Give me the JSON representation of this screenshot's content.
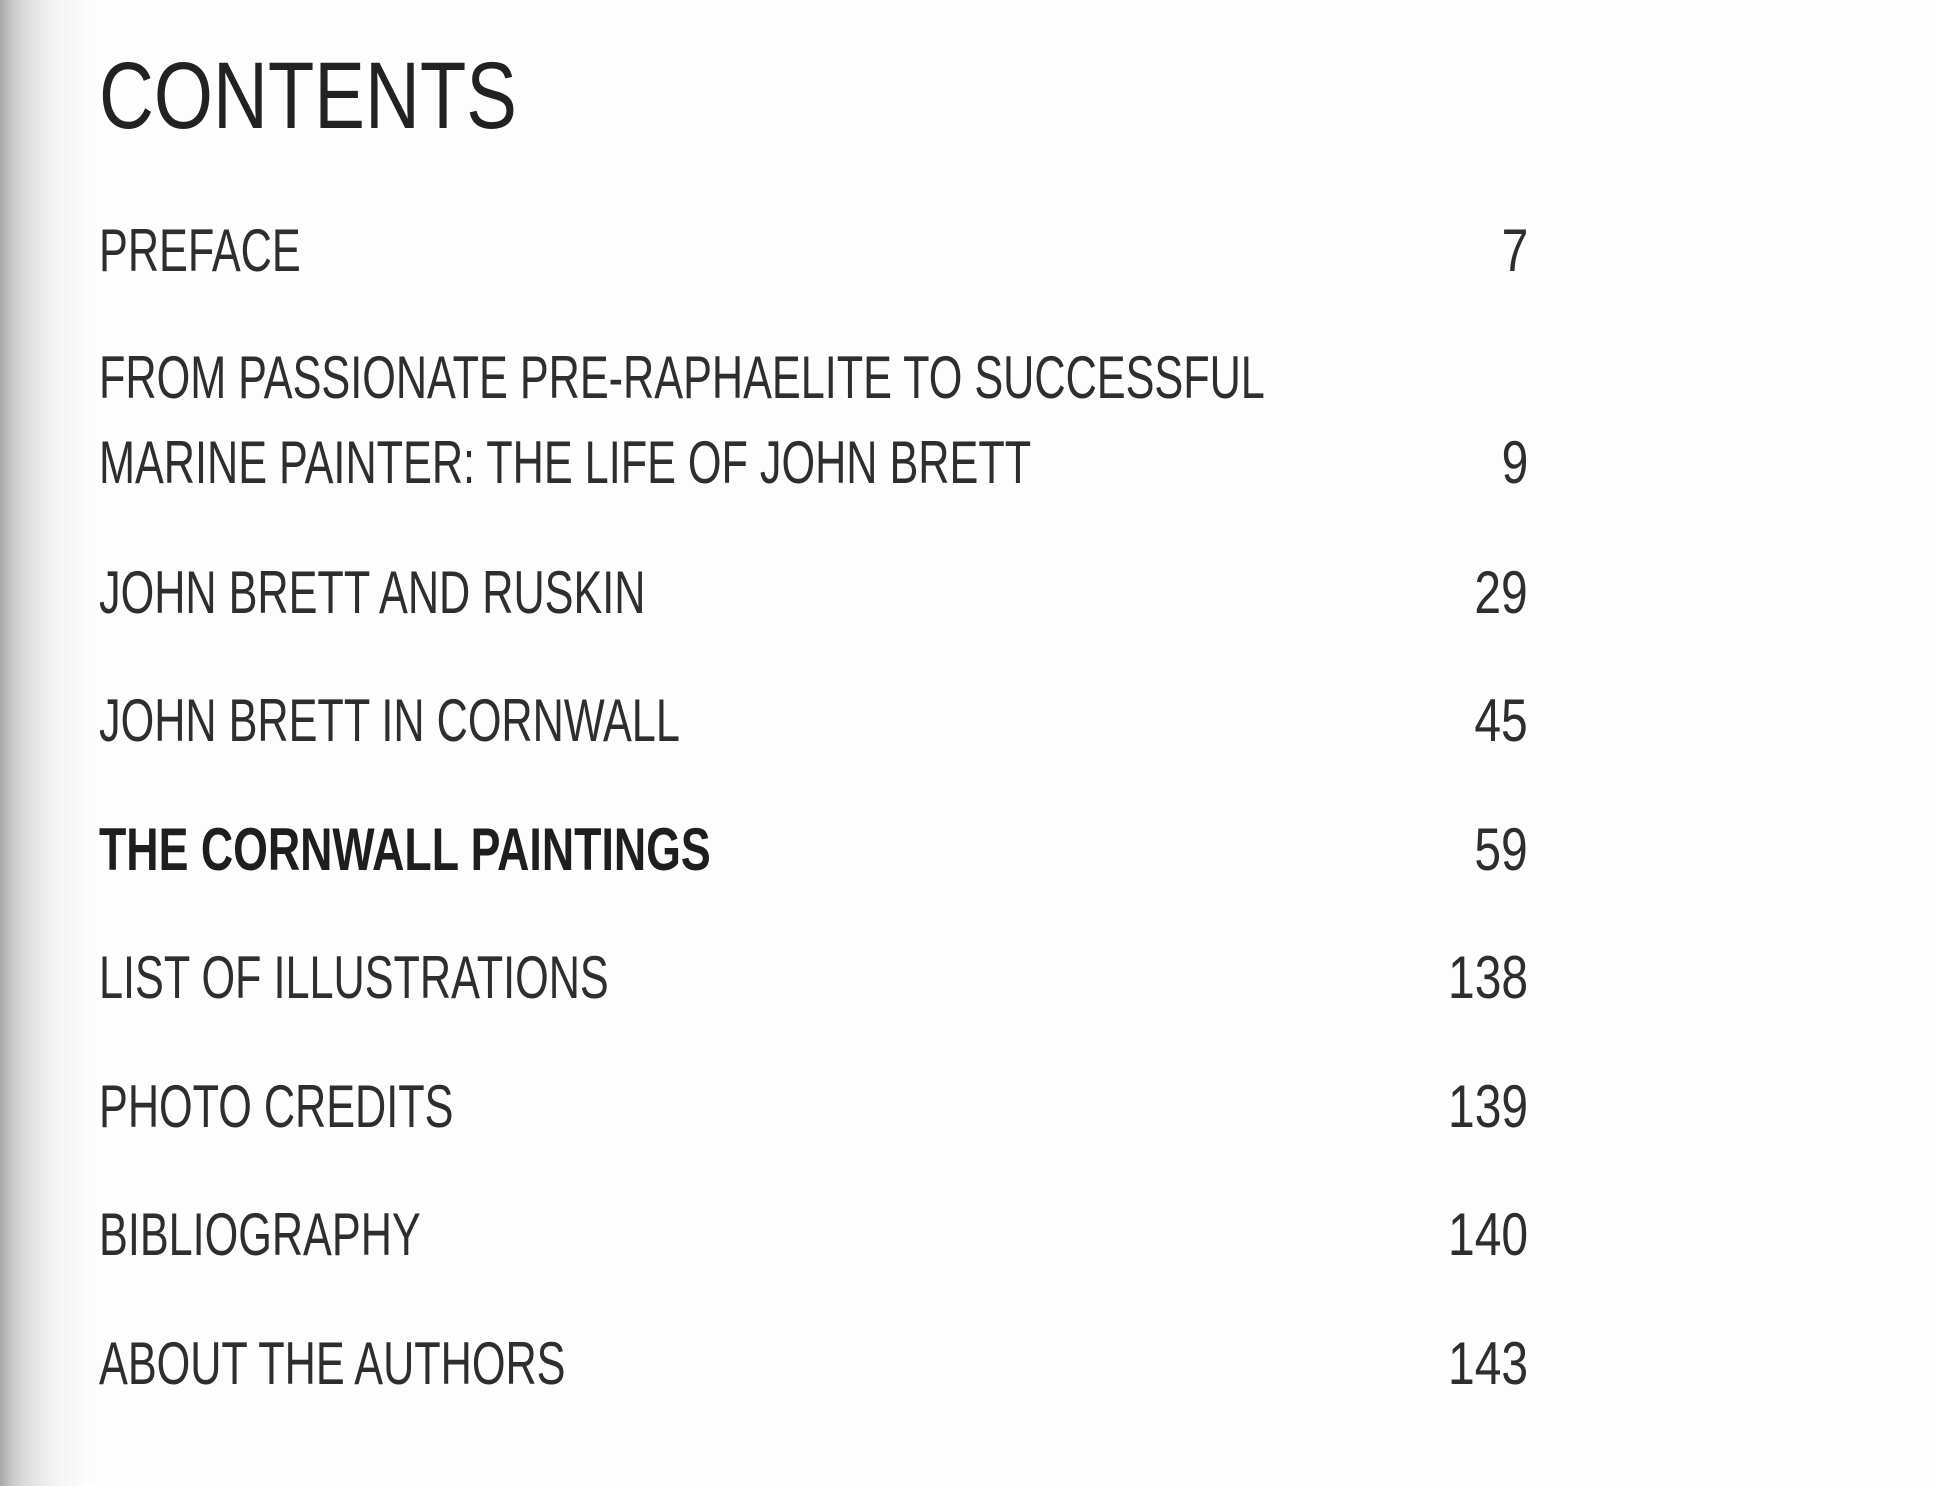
{
  "heading": "CONTENTS",
  "entries": [
    {
      "title": "PREFACE",
      "page": "7"
    },
    {
      "title_lines": [
        "FROM PASSIONATE PRE-RAPHAELITE TO SUCCESSFUL",
        "MARINE PAINTER: THE LIFE OF JOHN BRETT"
      ],
      "page": "9"
    },
    {
      "title": "JOHN BRETT AND RUSKIN",
      "page": "29"
    },
    {
      "title": "JOHN BRETT IN CORNWALL",
      "page": "45"
    },
    {
      "title": "THE CORNWALL PAINTINGS",
      "page": "59",
      "bold": true
    },
    {
      "title": "LIST OF ILLUSTRATIONS",
      "page": "138"
    },
    {
      "title": "PHOTO CREDITS",
      "page": "139"
    },
    {
      "title": "BIBLIOGRAPHY",
      "page": "140"
    },
    {
      "title": "ABOUT THE AUTHORS",
      "page": "143"
    }
  ]
}
